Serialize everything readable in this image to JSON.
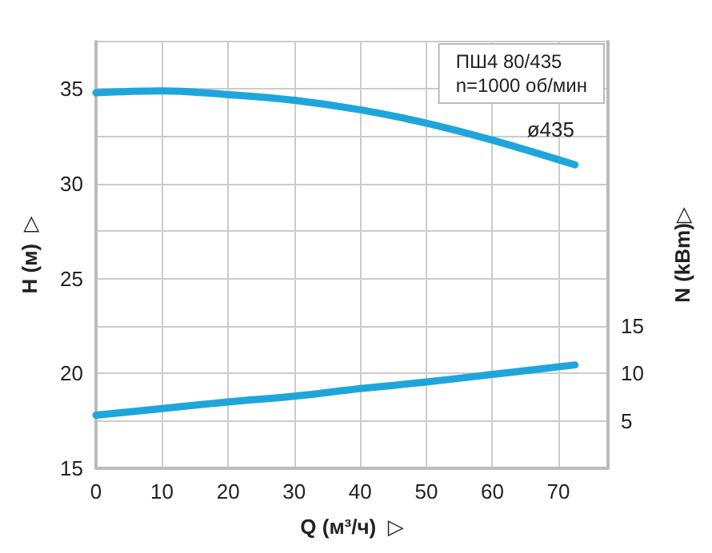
{
  "chart_data": {
    "type": "line",
    "xlabel": "Q (м³/ч)  ▷",
    "ylabel": "H (м)  ▷",
    "y2label": "N (kBm)▷",
    "x": [
      0,
      10,
      20,
      30,
      40,
      50,
      60,
      72.5
    ],
    "series": [
      {
        "name": "ø435",
        "color": "#1ea6dc",
        "values": [
          34.8,
          34.9,
          34.7,
          34.4,
          33.9,
          33.2,
          32.3,
          31.0
        ]
      },
      {
        "color": "#1ea6dc",
        "axis": "y2",
        "values": [
          5.6,
          6.3,
          7.0,
          7.6,
          8.4,
          9.1,
          9.9,
          10.9
        ]
      }
    ],
    "xlim": [
      0,
      77.5
    ],
    "xticks": [
      0,
      10,
      20,
      30,
      40,
      50,
      60,
      70
    ],
    "ylim": [
      15,
      37.5
    ],
    "yticks": [
      15,
      {
        "value": 17.5,
        "label": null
      },
      20,
      {
        "value": 22.5,
        "label": null
      },
      25,
      {
        "value": 27.5,
        "label": null
      },
      30,
      {
        "value": 32.5,
        "label": null
      },
      35
    ],
    "y2lim": [
      0,
      45
    ],
    "y2ticks": [
      5,
      10,
      15
    ],
    "grid": true,
    "marker": "none",
    "line_style": "solid",
    "annotations": [
      "ПШ4 80/435\nn=1000 об/мин"
    ]
  }
}
